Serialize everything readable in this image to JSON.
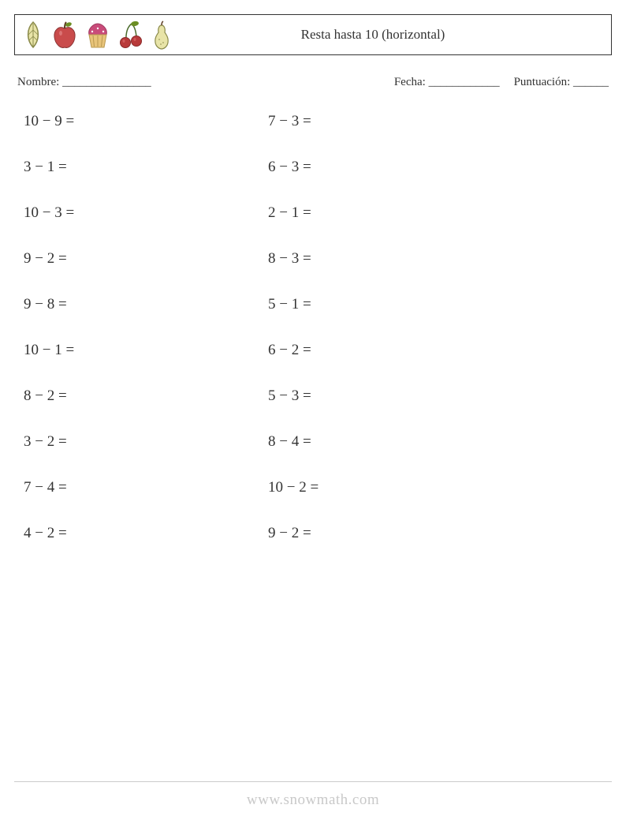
{
  "header": {
    "title": "Resta hasta 10 (horizontal)",
    "icons": [
      "leaf",
      "apple",
      "cupcake",
      "cherries",
      "pear"
    ]
  },
  "info": {
    "name_label": "Nombre: _______________",
    "date_label": "Fecha: ____________",
    "score_label": "Puntuación: ______"
  },
  "style": {
    "minus": "−",
    "equals": "=",
    "text_color": "#333333",
    "font_size_problems": 19,
    "font_size_header": 17,
    "font_size_info": 15,
    "icon_colors": {
      "leaf_stroke": "#555544",
      "leaf_fill": "#e8e4a8",
      "apple_fill": "#c94b4b",
      "apple_leaf": "#6b8e23",
      "apple_stem": "#5b3a1e",
      "cupcake_top": "#c94b7a",
      "cupcake_base": "#e8c47a",
      "cherry_fill": "#b83a3a",
      "cherry_stem": "#4a6b2a",
      "pear_fill": "#e8e4a8",
      "pear_stroke": "#8a8a4a"
    }
  },
  "problems": {
    "col1": [
      {
        "a": 10,
        "b": 9
      },
      {
        "a": 3,
        "b": 1
      },
      {
        "a": 10,
        "b": 3
      },
      {
        "a": 9,
        "b": 2
      },
      {
        "a": 9,
        "b": 8
      },
      {
        "a": 10,
        "b": 1
      },
      {
        "a": 8,
        "b": 2
      },
      {
        "a": 3,
        "b": 2
      },
      {
        "a": 7,
        "b": 4
      },
      {
        "a": 4,
        "b": 2
      }
    ],
    "col2": [
      {
        "a": 7,
        "b": 3
      },
      {
        "a": 6,
        "b": 3
      },
      {
        "a": 2,
        "b": 1
      },
      {
        "a": 8,
        "b": 3
      },
      {
        "a": 5,
        "b": 1
      },
      {
        "a": 6,
        "b": 2
      },
      {
        "a": 5,
        "b": 3
      },
      {
        "a": 8,
        "b": 4
      },
      {
        "a": 10,
        "b": 2
      },
      {
        "a": 9,
        "b": 2
      }
    ]
  },
  "footer": {
    "url": "www.snowmath.com"
  }
}
